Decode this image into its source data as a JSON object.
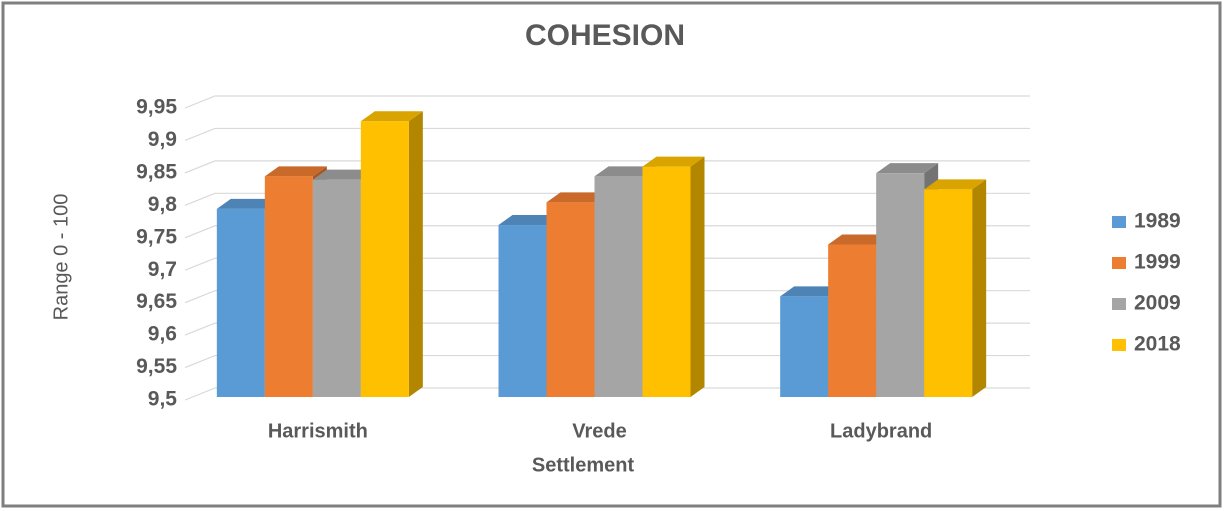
{
  "chart_data": {
    "type": "bar3d",
    "title": "COHESION",
    "x_label": "Settlement",
    "y_label": "Range 0 - 100",
    "categories": [
      "Harrismith",
      "Vrede",
      "Ladybrand"
    ],
    "series": [
      {
        "name": "1989",
        "color": "#5b9bd5",
        "values": [
          9.79,
          9.765,
          9.655
        ]
      },
      {
        "name": "1999",
        "color": "#ed7d31",
        "values": [
          9.84,
          9.8,
          9.735
        ]
      },
      {
        "name": "2009",
        "color": "#a5a5a5",
        "values": [
          9.835,
          9.84,
          9.845
        ]
      },
      {
        "name": "2018",
        "color": "#ffc000",
        "values": [
          9.925,
          9.855,
          9.82
        ]
      }
    ],
    "ylim": [
      9.5,
      9.95
    ],
    "yticks": [
      {
        "value": 9.5,
        "label": "9,5"
      },
      {
        "value": 9.55,
        "label": "9,55"
      },
      {
        "value": 9.6,
        "label": "9,6"
      },
      {
        "value": 9.65,
        "label": "9,65"
      },
      {
        "value": 9.7,
        "label": "9,7"
      },
      {
        "value": 9.75,
        "label": "9,75"
      },
      {
        "value": 9.8,
        "label": "9,8"
      },
      {
        "value": 9.85,
        "label": "9,85"
      },
      {
        "value": 9.9,
        "label": "9,9"
      },
      {
        "value": 9.95,
        "label": "9,95"
      }
    ],
    "grid": true,
    "legend": "right"
  }
}
